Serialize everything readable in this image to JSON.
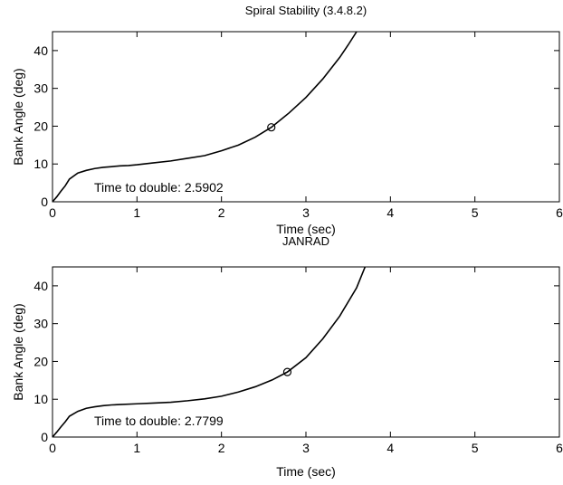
{
  "chart_data": [
    {
      "type": "line",
      "title": "Spiral Stability (3.4.8.2)",
      "xlabel": "Time (sec)",
      "ylabel": "Bank Angle (deg)",
      "xlim": [
        0,
        6
      ],
      "ylim": [
        0,
        45
      ],
      "xticks": [
        0,
        1,
        2,
        3,
        4,
        5,
        6
      ],
      "yticks": [
        0,
        10,
        20,
        30,
        40
      ],
      "grid": false,
      "series": [
        {
          "x": [
            0,
            0.05,
            0.1,
            0.15,
            0.2,
            0.3,
            0.4,
            0.5,
            0.6,
            0.7,
            0.8,
            0.9,
            1.0,
            1.2,
            1.4,
            1.6,
            1.8,
            2.0,
            2.2,
            2.4,
            2.5902,
            2.8,
            3.0,
            3.2,
            3.4,
            3.5,
            3.6
          ],
          "y": [
            0,
            1.3,
            2.8,
            4.2,
            6.0,
            7.6,
            8.3,
            8.8,
            9.1,
            9.3,
            9.5,
            9.6,
            9.8,
            10.3,
            10.8,
            11.5,
            12.2,
            13.5,
            15.0,
            17.1,
            19.7,
            23.5,
            27.6,
            32.5,
            38.2,
            41.5,
            45.0
          ]
        }
      ],
      "marker": {
        "x": 2.5902,
        "y": 19.7,
        "symbol": "circle"
      },
      "annotation": "Time to double: 2.5902"
    },
    {
      "type": "line",
      "title": "JANRAD",
      "xlabel": "Time (sec)",
      "ylabel": "Bank Angle (deg)",
      "xlim": [
        0,
        6
      ],
      "ylim": [
        0,
        45
      ],
      "xticks": [
        0,
        1,
        2,
        3,
        4,
        5,
        6
      ],
      "yticks": [
        0,
        10,
        20,
        30,
        40
      ],
      "grid": false,
      "series": [
        {
          "x": [
            0,
            0.05,
            0.1,
            0.15,
            0.2,
            0.3,
            0.4,
            0.5,
            0.6,
            0.7,
            0.8,
            1.0,
            1.2,
            1.4,
            1.6,
            1.8,
            2.0,
            2.2,
            2.4,
            2.6,
            2.7799,
            3.0,
            3.2,
            3.4,
            3.6,
            3.7
          ],
          "y": [
            0,
            1.3,
            2.7,
            4.0,
            5.5,
            6.8,
            7.6,
            8.0,
            8.3,
            8.5,
            8.6,
            8.8,
            9.0,
            9.2,
            9.6,
            10.1,
            10.8,
            11.9,
            13.3,
            15.1,
            17.2,
            21.0,
            26.0,
            32.0,
            39.5,
            45.0
          ]
        }
      ],
      "marker": {
        "x": 2.7799,
        "y": 17.2,
        "symbol": "circle"
      },
      "annotation": "Time to double: 2.7799"
    }
  ]
}
